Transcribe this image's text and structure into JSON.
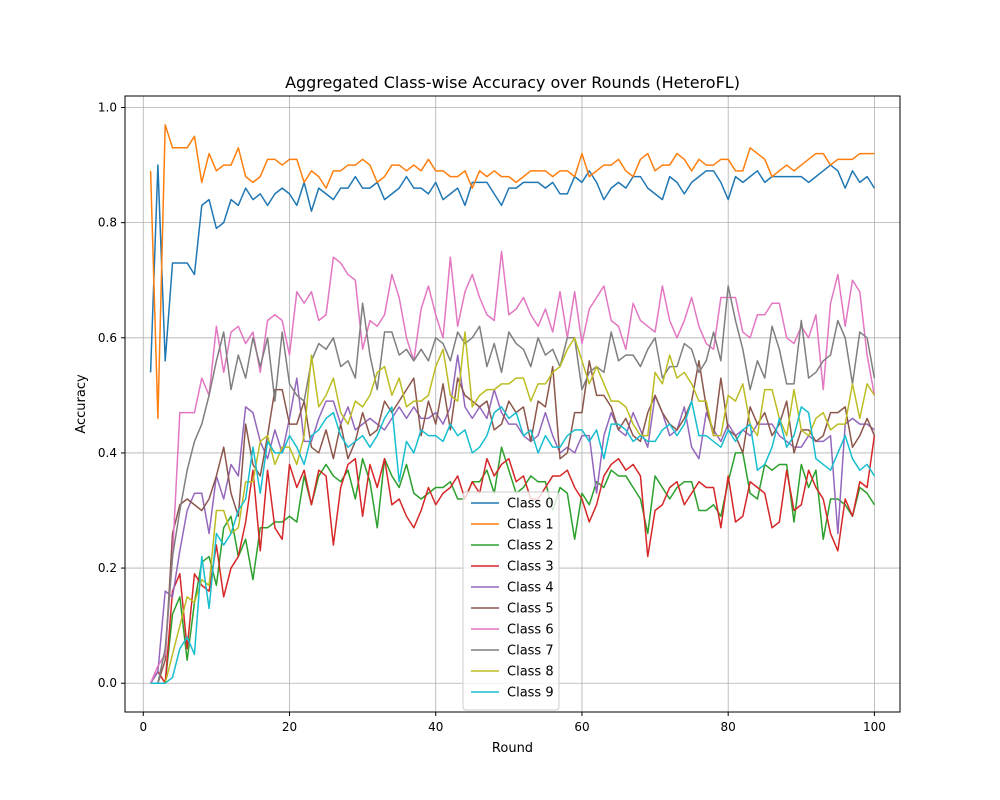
{
  "chart_data": {
    "type": "line",
    "title": "Aggregated Class-wise Accuracy over Rounds (HeteroFL)",
    "xlabel": "Round",
    "ylabel": "Accuracy",
    "xlim": [
      -2.5,
      103.5
    ],
    "ylim": [
      -0.05,
      1.02
    ],
    "xticks": [
      0,
      20,
      40,
      60,
      80,
      100
    ],
    "yticks": [
      0.0,
      0.2,
      0.4,
      0.6,
      0.8,
      1.0
    ],
    "ytick_labels": [
      "0.0",
      "0.2",
      "0.4",
      "0.6",
      "0.8",
      "1.0"
    ],
    "grid": true,
    "legend_position": "lower-center",
    "x_start": 1,
    "series": [
      {
        "name": "Class 0",
        "color": "#1f77b4",
        "values": [
          0.54,
          0.9,
          0.56,
          0.73,
          0.73,
          0.73,
          0.71,
          0.83,
          0.84,
          0.79,
          0.8,
          0.84,
          0.83,
          0.86,
          0.84,
          0.85,
          0.83,
          0.85,
          0.86,
          0.85,
          0.83,
          0.87,
          0.82,
          0.86,
          0.85,
          0.84,
          0.86,
          0.86,
          0.88,
          0.86,
          0.86,
          0.87,
          0.84,
          0.85,
          0.86,
          0.88,
          0.86,
          0.86,
          0.85,
          0.87,
          0.84,
          0.85,
          0.86,
          0.83,
          0.87,
          0.87,
          0.87,
          0.85,
          0.83,
          0.86,
          0.86,
          0.87,
          0.87,
          0.87,
          0.86,
          0.87,
          0.85,
          0.85,
          0.88,
          0.87,
          0.89,
          0.87,
          0.84,
          0.86,
          0.87,
          0.86,
          0.88,
          0.88,
          0.86,
          0.85,
          0.84,
          0.88,
          0.87,
          0.85,
          0.87,
          0.88,
          0.89,
          0.89,
          0.87,
          0.84,
          0.88,
          0.87,
          0.88,
          0.89,
          0.87,
          0.88,
          0.88,
          0.88,
          0.88,
          0.88,
          0.87,
          0.88,
          0.89,
          0.9,
          0.89,
          0.86,
          0.89,
          0.87,
          0.88,
          0.86
        ]
      },
      {
        "name": "Class 1",
        "color": "#ff7f0e",
        "values": [
          0.89,
          0.46,
          0.97,
          0.93,
          0.93,
          0.93,
          0.95,
          0.87,
          0.92,
          0.89,
          0.9,
          0.9,
          0.93,
          0.88,
          0.87,
          0.88,
          0.91,
          0.91,
          0.9,
          0.91,
          0.91,
          0.87,
          0.89,
          0.88,
          0.86,
          0.89,
          0.89,
          0.9,
          0.9,
          0.91,
          0.9,
          0.87,
          0.88,
          0.9,
          0.9,
          0.89,
          0.9,
          0.89,
          0.91,
          0.89,
          0.89,
          0.88,
          0.88,
          0.89,
          0.86,
          0.89,
          0.88,
          0.89,
          0.88,
          0.88,
          0.87,
          0.88,
          0.89,
          0.89,
          0.89,
          0.88,
          0.89,
          0.89,
          0.88,
          0.92,
          0.88,
          0.89,
          0.9,
          0.9,
          0.91,
          0.89,
          0.88,
          0.91,
          0.92,
          0.89,
          0.9,
          0.9,
          0.92,
          0.91,
          0.89,
          0.91,
          0.9,
          0.9,
          0.91,
          0.91,
          0.89,
          0.89,
          0.93,
          0.92,
          0.91,
          0.88,
          0.89,
          0.9,
          0.89,
          0.9,
          0.91,
          0.92,
          0.92,
          0.9,
          0.91,
          0.91,
          0.91,
          0.92,
          0.92,
          0.92
        ]
      },
      {
        "name": "Class 2",
        "color": "#2ca02c",
        "values": [
          0.0,
          0.0,
          0.0,
          0.12,
          0.15,
          0.04,
          0.14,
          0.21,
          0.22,
          0.17,
          0.27,
          0.29,
          0.22,
          0.25,
          0.18,
          0.27,
          0.27,
          0.28,
          0.28,
          0.29,
          0.28,
          0.36,
          0.31,
          0.36,
          0.38,
          0.36,
          0.35,
          0.37,
          0.32,
          0.39,
          0.35,
          0.27,
          0.39,
          0.36,
          0.34,
          0.38,
          0.33,
          0.32,
          0.33,
          0.34,
          0.34,
          0.35,
          0.32,
          0.32,
          0.35,
          0.35,
          0.37,
          0.33,
          0.41,
          0.37,
          0.33,
          0.34,
          0.36,
          0.35,
          0.35,
          0.3,
          0.34,
          0.33,
          0.25,
          0.33,
          0.31,
          0.35,
          0.34,
          0.37,
          0.36,
          0.36,
          0.34,
          0.32,
          0.26,
          0.36,
          0.34,
          0.32,
          0.34,
          0.35,
          0.35,
          0.3,
          0.3,
          0.31,
          0.29,
          0.35,
          0.4,
          0.4,
          0.33,
          0.32,
          0.38,
          0.37,
          0.38,
          0.38,
          0.28,
          0.38,
          0.34,
          0.37,
          0.25,
          0.32,
          0.32,
          0.31,
          0.29,
          0.34,
          0.33,
          0.31
        ]
      },
      {
        "name": "Class 3",
        "color": "#d62728",
        "values": [
          0.0,
          0.02,
          0.0,
          0.16,
          0.19,
          0.06,
          0.19,
          0.17,
          0.16,
          0.24,
          0.15,
          0.2,
          0.22,
          0.28,
          0.37,
          0.23,
          0.37,
          0.27,
          0.25,
          0.38,
          0.34,
          0.37,
          0.31,
          0.37,
          0.36,
          0.24,
          0.34,
          0.38,
          0.39,
          0.29,
          0.38,
          0.34,
          0.39,
          0.31,
          0.32,
          0.29,
          0.27,
          0.3,
          0.34,
          0.31,
          0.33,
          0.34,
          0.36,
          0.32,
          0.35,
          0.33,
          0.39,
          0.36,
          0.38,
          0.39,
          0.35,
          0.36,
          0.32,
          0.32,
          0.34,
          0.36,
          0.36,
          0.37,
          0.34,
          0.32,
          0.28,
          0.31,
          0.36,
          0.38,
          0.39,
          0.37,
          0.38,
          0.36,
          0.22,
          0.3,
          0.31,
          0.34,
          0.35,
          0.31,
          0.33,
          0.35,
          0.34,
          0.34,
          0.27,
          0.36,
          0.28,
          0.29,
          0.35,
          0.34,
          0.33,
          0.27,
          0.28,
          0.37,
          0.3,
          0.31,
          0.37,
          0.34,
          0.32,
          0.26,
          0.23,
          0.32,
          0.29,
          0.35,
          0.34,
          0.43
        ]
      },
      {
        "name": "Class 4",
        "color": "#9467bd",
        "values": [
          0.0,
          0.02,
          0.16,
          0.15,
          0.23,
          0.3,
          0.33,
          0.33,
          0.26,
          0.36,
          0.32,
          0.38,
          0.36,
          0.48,
          0.47,
          0.42,
          0.39,
          0.44,
          0.4,
          0.46,
          0.53,
          0.42,
          0.42,
          0.46,
          0.49,
          0.49,
          0.45,
          0.48,
          0.44,
          0.45,
          0.46,
          0.45,
          0.44,
          0.46,
          0.48,
          0.46,
          0.48,
          0.46,
          0.46,
          0.47,
          0.45,
          0.48,
          0.57,
          0.48,
          0.46,
          0.48,
          0.46,
          0.51,
          0.47,
          0.45,
          0.45,
          0.43,
          0.42,
          0.43,
          0.47,
          0.43,
          0.4,
          0.41,
          0.4,
          0.43,
          0.43,
          0.33,
          0.43,
          0.47,
          0.44,
          0.43,
          0.47,
          0.44,
          0.41,
          0.5,
          0.47,
          0.43,
          0.44,
          0.48,
          0.41,
          0.39,
          0.47,
          0.44,
          0.42,
          0.45,
          0.43,
          0.44,
          0.43,
          0.45,
          0.45,
          0.45,
          0.43,
          0.42,
          0.41,
          0.41,
          0.43,
          0.42,
          0.42,
          0.43,
          0.26,
          0.45,
          0.46,
          0.45,
          0.45,
          0.44
        ]
      },
      {
        "name": "Class 5",
        "color": "#8c564b",
        "values": [
          0.0,
          0.0,
          0.04,
          0.26,
          0.31,
          0.32,
          0.31,
          0.3,
          0.32,
          0.36,
          0.41,
          0.33,
          0.29,
          0.45,
          0.38,
          0.36,
          0.43,
          0.51,
          0.51,
          0.45,
          0.45,
          0.49,
          0.41,
          0.4,
          0.44,
          0.39,
          0.45,
          0.39,
          0.42,
          0.47,
          0.43,
          0.44,
          0.49,
          0.47,
          0.49,
          0.51,
          0.53,
          0.43,
          0.49,
          0.45,
          0.52,
          0.44,
          0.53,
          0.5,
          0.49,
          0.48,
          0.49,
          0.44,
          0.45,
          0.49,
          0.47,
          0.48,
          0.42,
          0.49,
          0.48,
          0.55,
          0.39,
          0.4,
          0.47,
          0.47,
          0.56,
          0.5,
          0.5,
          0.48,
          0.44,
          0.46,
          0.43,
          0.42,
          0.47,
          0.5,
          0.47,
          0.45,
          0.44,
          0.46,
          0.49,
          0.56,
          0.48,
          0.43,
          0.53,
          0.44,
          0.43,
          0.4,
          0.48,
          0.45,
          0.47,
          0.43,
          0.45,
          0.49,
          0.4,
          0.44,
          0.44,
          0.42,
          0.43,
          0.47,
          0.47,
          0.48,
          0.41,
          0.43,
          0.46,
          0.43
        ]
      },
      {
        "name": "Class 6",
        "color": "#e377c2",
        "values": [
          0.0,
          0.03,
          0.05,
          0.22,
          0.47,
          0.47,
          0.47,
          0.53,
          0.5,
          0.62,
          0.54,
          0.61,
          0.62,
          0.59,
          0.61,
          0.54,
          0.63,
          0.64,
          0.63,
          0.57,
          0.68,
          0.66,
          0.68,
          0.63,
          0.64,
          0.74,
          0.73,
          0.71,
          0.7,
          0.58,
          0.63,
          0.62,
          0.64,
          0.71,
          0.67,
          0.6,
          0.56,
          0.65,
          0.69,
          0.64,
          0.6,
          0.74,
          0.62,
          0.68,
          0.71,
          0.67,
          0.64,
          0.63,
          0.75,
          0.64,
          0.65,
          0.67,
          0.64,
          0.62,
          0.65,
          0.61,
          0.68,
          0.6,
          0.68,
          0.59,
          0.65,
          0.67,
          0.69,
          0.63,
          0.62,
          0.58,
          0.66,
          0.63,
          0.62,
          0.61,
          0.69,
          0.63,
          0.6,
          0.63,
          0.67,
          0.62,
          0.59,
          0.58,
          0.67,
          0.67,
          0.67,
          0.61,
          0.6,
          0.64,
          0.64,
          0.66,
          0.66,
          0.6,
          0.59,
          0.62,
          0.6,
          0.64,
          0.51,
          0.66,
          0.71,
          0.62,
          0.7,
          0.68,
          0.57,
          0.5
        ]
      },
      {
        "name": "Class 7",
        "color": "#7f7f7f",
        "values": [
          0.0,
          0.0,
          0.06,
          0.22,
          0.3,
          0.37,
          0.42,
          0.45,
          0.5,
          0.56,
          0.61,
          0.51,
          0.57,
          0.53,
          0.6,
          0.55,
          0.6,
          0.49,
          0.61,
          0.52,
          0.5,
          0.49,
          0.56,
          0.59,
          0.58,
          0.6,
          0.55,
          0.56,
          0.53,
          0.66,
          0.57,
          0.51,
          0.61,
          0.61,
          0.57,
          0.58,
          0.56,
          0.58,
          0.56,
          0.6,
          0.59,
          0.56,
          0.61,
          0.59,
          0.6,
          0.62,
          0.55,
          0.59,
          0.54,
          0.61,
          0.59,
          0.58,
          0.55,
          0.6,
          0.57,
          0.58,
          0.55,
          0.6,
          0.6,
          0.51,
          0.54,
          0.55,
          0.54,
          0.61,
          0.56,
          0.57,
          0.57,
          0.55,
          0.58,
          0.6,
          0.53,
          0.55,
          0.55,
          0.59,
          0.58,
          0.54,
          0.56,
          0.61,
          0.56,
          0.69,
          0.63,
          0.58,
          0.51,
          0.56,
          0.53,
          0.62,
          0.58,
          0.52,
          0.52,
          0.63,
          0.53,
          0.54,
          0.56,
          0.57,
          0.63,
          0.6,
          0.52,
          0.61,
          0.6,
          0.53
        ]
      },
      {
        "name": "Class 8",
        "color": "#bcbd22",
        "values": [
          0.0,
          0.0,
          0.0,
          0.05,
          0.1,
          0.15,
          0.14,
          0.18,
          0.17,
          0.3,
          0.3,
          0.26,
          0.27,
          0.35,
          0.35,
          0.42,
          0.43,
          0.38,
          0.41,
          0.41,
          0.38,
          0.43,
          0.57,
          0.48,
          0.5,
          0.53,
          0.47,
          0.45,
          0.49,
          0.48,
          0.5,
          0.54,
          0.55,
          0.5,
          0.53,
          0.48,
          0.49,
          0.49,
          0.5,
          0.55,
          0.58,
          0.5,
          0.49,
          0.61,
          0.48,
          0.5,
          0.51,
          0.51,
          0.52,
          0.52,
          0.53,
          0.53,
          0.49,
          0.52,
          0.52,
          0.54,
          0.55,
          0.58,
          0.6,
          0.56,
          0.52,
          0.55,
          0.52,
          0.49,
          0.49,
          0.48,
          0.45,
          0.43,
          0.43,
          0.54,
          0.52,
          0.57,
          0.53,
          0.54,
          0.52,
          0.49,
          0.49,
          0.43,
          0.43,
          0.5,
          0.49,
          0.52,
          0.45,
          0.43,
          0.51,
          0.51,
          0.46,
          0.43,
          0.51,
          0.44,
          0.43,
          0.46,
          0.47,
          0.44,
          0.45,
          0.45,
          0.52,
          0.46,
          0.52,
          0.5
        ]
      },
      {
        "name": "Class 9",
        "color": "#17becf",
        "values": [
          0.0,
          0.0,
          0.0,
          0.01,
          0.06,
          0.08,
          0.05,
          0.22,
          0.13,
          0.26,
          0.24,
          0.26,
          0.3,
          0.32,
          0.41,
          0.33,
          0.42,
          0.4,
          0.4,
          0.43,
          0.41,
          0.38,
          0.43,
          0.44,
          0.46,
          0.47,
          0.43,
          0.41,
          0.42,
          0.43,
          0.41,
          0.43,
          0.46,
          0.48,
          0.35,
          0.42,
          0.4,
          0.44,
          0.43,
          0.43,
          0.42,
          0.45,
          0.43,
          0.44,
          0.4,
          0.41,
          0.43,
          0.47,
          0.48,
          0.46,
          0.47,
          0.43,
          0.44,
          0.4,
          0.43,
          0.41,
          0.41,
          0.43,
          0.44,
          0.44,
          0.42,
          0.44,
          0.39,
          0.45,
          0.45,
          0.44,
          0.42,
          0.43,
          0.42,
          0.42,
          0.44,
          0.45,
          0.43,
          0.45,
          0.49,
          0.43,
          0.43,
          0.42,
          0.41,
          0.44,
          0.42,
          0.44,
          0.45,
          0.37,
          0.38,
          0.41,
          0.46,
          0.41,
          0.43,
          0.48,
          0.47,
          0.39,
          0.38,
          0.37,
          0.4,
          0.43,
          0.39,
          0.37,
          0.38,
          0.36
        ]
      }
    ]
  }
}
